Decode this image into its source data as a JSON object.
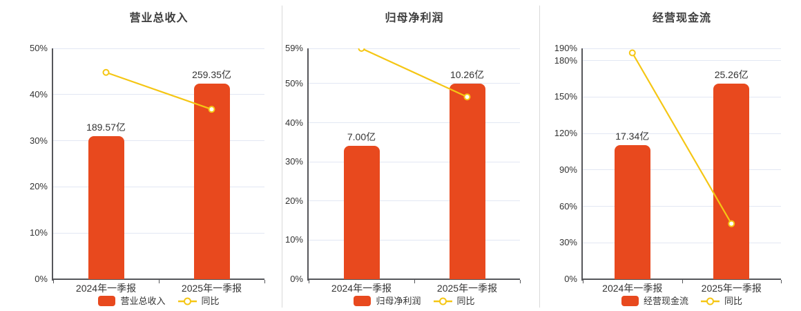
{
  "colors": {
    "bar": "#E8491E",
    "line": "#F5C614",
    "marker_fill": "#FFFFFF",
    "grid": "#E2E7F3",
    "axis": "#55565A",
    "label_text": "#333333",
    "title_text": "#3D3D3D",
    "separator": "#D9D9D9"
  },
  "chart_data": [
    {
      "type": "bar",
      "title": "营业总收入",
      "categories": [
        "2024年一季报",
        "2025年一季报"
      ],
      "bar_series": {
        "name": "营业总收入",
        "unit": "亿",
        "values": [
          189.57,
          259.35
        ],
        "labels": [
          "189.57亿",
          "259.35亿"
        ]
      },
      "line_series": {
        "name": "同比",
        "unit": "%",
        "values": [
          44.8,
          36.8
        ]
      },
      "ylim": [
        0,
        50
      ],
      "yticks": [
        50,
        40,
        30,
        20,
        10,
        0
      ],
      "ytick_labels": [
        "50%",
        "40%",
        "30%",
        "20%",
        "10%",
        "0%"
      ],
      "grid": true,
      "legend_position": "bottom"
    },
    {
      "type": "bar",
      "title": "归母净利润",
      "categories": [
        "2024年一季报",
        "2025年一季报"
      ],
      "bar_series": {
        "name": "归母净利润",
        "unit": "亿",
        "values": [
          7.0,
          10.26
        ],
        "labels": [
          "7.00亿",
          "10.26亿"
        ]
      },
      "line_series": {
        "name": "同比",
        "unit": "%",
        "values": [
          59.0,
          46.6
        ]
      },
      "ylim": [
        0,
        59
      ],
      "yticks": [
        59,
        50,
        40,
        30,
        20,
        10,
        0
      ],
      "ytick_labels": [
        "59%",
        "50%",
        "40%",
        "30%",
        "20%",
        "10%",
        "0%"
      ],
      "grid": true,
      "legend_position": "bottom"
    },
    {
      "type": "bar",
      "title": "经营现金流",
      "categories": [
        "2024年一季报",
        "2025年一季报"
      ],
      "bar_series": {
        "name": "经营现金流",
        "unit": "亿",
        "values": [
          17.34,
          25.26
        ],
        "labels": [
          "17.34亿",
          "25.26亿"
        ]
      },
      "line_series": {
        "name": "同比",
        "unit": "%",
        "values": [
          186.3,
          45.7
        ]
      },
      "ylim": [
        0,
        190
      ],
      "yticks": [
        190,
        180,
        150,
        120,
        90,
        60,
        30,
        0
      ],
      "ytick_labels": [
        "190%",
        "180%",
        "150%",
        "120%",
        "90%",
        "60%",
        "30%",
        "0%"
      ],
      "grid": true,
      "legend_position": "bottom"
    }
  ]
}
